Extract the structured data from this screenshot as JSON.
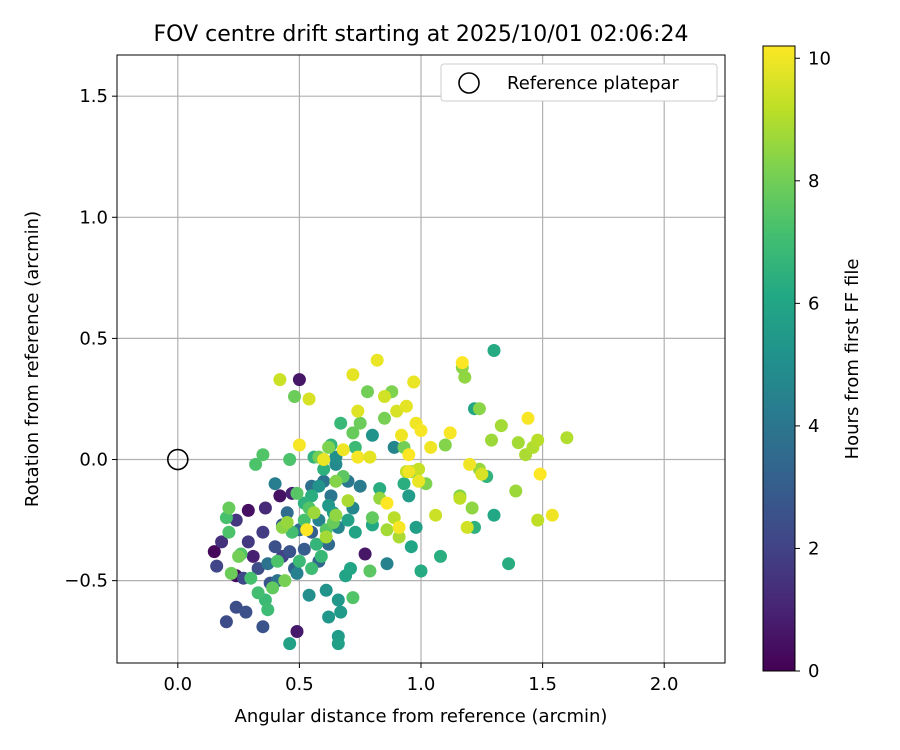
{
  "chart_data": {
    "type": "scatter",
    "title": "FOV centre drift starting at 2025/10/01 02:06:24",
    "xlabel": "Angular distance from reference (arcmin)",
    "ylabel": "Rotation from reference (arcmin)",
    "xlim": [
      -0.25,
      2.25
    ],
    "ylim": [
      -0.84,
      1.67
    ],
    "xticks": [
      0.0,
      0.5,
      1.0,
      1.5,
      2.0
    ],
    "xtick_labels": [
      "0.0",
      "0.5",
      "1.0",
      "1.5",
      "2.0"
    ],
    "yticks": [
      -0.5,
      0.0,
      0.5,
      1.0,
      1.5
    ],
    "ytick_labels": [
      "−0.5",
      "0.0",
      "0.5",
      "1.0",
      "1.5"
    ],
    "grid": true,
    "legend": {
      "location": "upper right",
      "label": "Reference platepar"
    },
    "reference_point": {
      "x": 0.0,
      "y": 0.0
    },
    "colorbar": {
      "label": "Hours from first FF file",
      "range": [
        0,
        10.2
      ],
      "ticks": [
        0,
        2,
        4,
        6,
        8,
        10
      ],
      "tick_labels": [
        "0",
        "2",
        "4",
        "6",
        "8",
        "10"
      ],
      "colormap": "viridis"
    },
    "points": [
      [
        0.15,
        -0.38,
        0.2
      ],
      [
        0.24,
        -0.48,
        0.3
      ],
      [
        0.29,
        -0.21,
        0.4
      ],
      [
        0.42,
        -0.15,
        0.5
      ],
      [
        0.5,
        0.33,
        0.6
      ],
      [
        0.49,
        -0.71,
        0.7
      ],
      [
        0.31,
        -0.4,
        0.9
      ],
      [
        0.77,
        -0.39,
        0.6
      ],
      [
        0.47,
        -0.14,
        1.0
      ],
      [
        0.36,
        -0.2,
        1.2
      ],
      [
        0.18,
        -0.34,
        1.4
      ],
      [
        0.24,
        -0.25,
        1.6
      ],
      [
        0.29,
        -0.34,
        1.7
      ],
      [
        0.35,
        -0.3,
        1.8
      ],
      [
        0.43,
        -0.4,
        2.0
      ],
      [
        0.16,
        -0.44,
        2.1
      ],
      [
        0.27,
        -0.49,
        2.2
      ],
      [
        0.33,
        -0.45,
        2.4
      ],
      [
        0.4,
        -0.36,
        2.5
      ],
      [
        0.46,
        -0.38,
        2.6
      ],
      [
        0.2,
        -0.67,
        2.3
      ],
      [
        0.24,
        -0.61,
        2.4
      ],
      [
        0.28,
        -0.63,
        2.5
      ],
      [
        0.35,
        -0.69,
        2.6
      ],
      [
        0.38,
        -0.51,
        2.7
      ],
      [
        0.43,
        -0.27,
        2.8
      ],
      [
        0.52,
        -0.37,
        3.0
      ],
      [
        0.55,
        -0.3,
        3.1
      ],
      [
        0.48,
        -0.45,
        3.2
      ],
      [
        0.58,
        -0.42,
        3.4
      ],
      [
        0.62,
        -0.35,
        3.5
      ],
      [
        0.45,
        -0.22,
        3.6
      ],
      [
        0.5,
        -0.29,
        3.7
      ],
      [
        0.41,
        -0.5,
        3.8
      ],
      [
        0.37,
        -0.43,
        3.9
      ],
      [
        0.55,
        -0.11,
        3.7
      ],
      [
        0.6,
        -0.09,
        3.9
      ],
      [
        0.63,
        -0.15,
        4.0
      ],
      [
        0.7,
        -0.09,
        4.1
      ],
      [
        0.75,
        -0.11,
        4.2
      ],
      [
        0.4,
        -0.1,
        4.3
      ],
      [
        0.49,
        -0.47,
        4.4
      ],
      [
        0.58,
        -0.25,
        4.5
      ],
      [
        0.66,
        -0.28,
        4.6
      ],
      [
        0.72,
        -0.2,
        4.7
      ],
      [
        0.86,
        -0.43,
        4.5
      ],
      [
        0.89,
        0.05,
        4.6
      ],
      [
        0.65,
        -0.02,
        4.8
      ],
      [
        0.65,
        0.01,
        5.0
      ],
      [
        0.8,
        0.1,
        5.2
      ],
      [
        0.54,
        -0.56,
        5.0
      ],
      [
        0.61,
        -0.54,
        5.2
      ],
      [
        0.62,
        -0.65,
        5.3
      ],
      [
        0.66,
        -0.58,
        5.4
      ],
      [
        0.67,
        -0.63,
        5.5
      ],
      [
        0.66,
        -0.73,
        5.6
      ],
      [
        0.66,
        -0.76,
        5.7
      ],
      [
        0.46,
        -0.76,
        5.8
      ],
      [
        0.69,
        -0.48,
        5.9
      ],
      [
        0.71,
        -0.45,
        6.0
      ],
      [
        0.58,
        -0.11,
        5.2
      ],
      [
        0.62,
        -0.19,
        5.4
      ],
      [
        0.64,
        -0.22,
        5.6
      ],
      [
        0.7,
        -0.25,
        5.8
      ],
      [
        0.73,
        -0.3,
        5.9
      ],
      [
        0.8,
        -0.27,
        6.1
      ],
      [
        0.83,
        -0.12,
        6.3
      ],
      [
        0.93,
        -0.1,
        6.4
      ],
      [
        0.95,
        -0.15,
        5.6
      ],
      [
        0.98,
        -0.28,
        5.7
      ],
      [
        0.96,
        -0.36,
        6.0
      ],
      [
        1.0,
        -0.46,
        6.2
      ],
      [
        1.08,
        -0.4,
        6.4
      ],
      [
        1.3,
        -0.23,
        6.1
      ],
      [
        1.36,
        -0.43,
        6.3
      ],
      [
        1.3,
        0.45,
        6.2
      ],
      [
        1.22,
        0.21,
        6.0
      ],
      [
        1.22,
        -0.28,
        6.5
      ],
      [
        1.27,
        -0.07,
        6.6
      ],
      [
        0.56,
        0.01,
        6.6
      ],
      [
        0.6,
        -0.04,
        6.5
      ],
      [
        0.63,
        0.06,
        6.7
      ],
      [
        0.67,
        0.15,
        6.8
      ],
      [
        0.73,
        0.05,
        6.9
      ],
      [
        0.55,
        -0.15,
        6.4
      ],
      [
        0.52,
        -0.18,
        6.5
      ],
      [
        0.57,
        -0.35,
        6.7
      ],
      [
        0.59,
        -0.4,
        6.8
      ],
      [
        0.5,
        -0.42,
        6.9
      ],
      [
        0.55,
        -0.45,
        7.0
      ],
      [
        0.36,
        -0.58,
        6.9
      ],
      [
        0.37,
        -0.62,
        7.0
      ],
      [
        0.3,
        -0.49,
        7.2
      ],
      [
        0.33,
        -0.55,
        7.1
      ],
      [
        0.41,
        -0.42,
        7.3
      ],
      [
        0.47,
        -0.3,
        7.1
      ],
      [
        0.52,
        -0.25,
        7.2
      ],
      [
        0.2,
        -0.24,
        7.2
      ],
      [
        0.21,
        -0.3,
        7.3
      ],
      [
        0.26,
        -0.39,
        7.4
      ],
      [
        0.32,
        -0.02,
        7.3
      ],
      [
        0.35,
        0.02,
        7.4
      ],
      [
        0.46,
        0.0,
        7.3
      ],
      [
        0.49,
        -0.14,
        7.5
      ],
      [
        0.54,
        -0.2,
        7.4
      ],
      [
        0.61,
        -0.29,
        7.5
      ],
      [
        0.72,
        -0.57,
        7.4
      ],
      [
        0.79,
        -0.46,
        7.6
      ],
      [
        0.8,
        -0.24,
        7.7
      ],
      [
        0.64,
        -0.26,
        7.8
      ],
      [
        0.68,
        -0.07,
        7.6
      ],
      [
        0.72,
        0.11,
        7.8
      ],
      [
        0.75,
        0.15,
        7.9
      ],
      [
        0.78,
        0.28,
        8.0
      ],
      [
        0.85,
        0.17,
        8.1
      ],
      [
        0.88,
        0.28,
        8.2
      ],
      [
        0.93,
        0.05,
        8.0
      ],
      [
        0.96,
        -0.05,
        8.1
      ],
      [
        1.02,
        -0.1,
        8.2
      ],
      [
        1.1,
        0.06,
        8.3
      ],
      [
        1.17,
        0.38,
        8.4
      ],
      [
        1.18,
        0.34,
        8.5
      ],
      [
        1.24,
        0.21,
        8.4
      ],
      [
        1.16,
        -0.15,
        8.3
      ],
      [
        1.21,
        -0.2,
        8.5
      ],
      [
        1.24,
        -0.04,
        8.6
      ],
      [
        1.29,
        0.08,
        8.7
      ],
      [
        1.33,
        0.14,
        8.8
      ],
      [
        1.39,
        -0.13,
        8.7
      ],
      [
        1.4,
        0.07,
        8.8
      ],
      [
        1.43,
        0.02,
        8.9
      ],
      [
        1.46,
        0.05,
        9.0
      ],
      [
        1.48,
        0.08,
        9.1
      ],
      [
        1.6,
        0.09,
        9.0
      ],
      [
        1.48,
        -0.25,
        9.2
      ],
      [
        0.48,
        0.26,
        7.9
      ],
      [
        0.58,
        0.01,
        8.0
      ],
      [
        0.62,
        0.05,
        8.2
      ],
      [
        0.65,
        -0.09,
        8.3
      ],
      [
        0.22,
        -0.47,
        7.9
      ],
      [
        0.21,
        -0.2,
        7.8
      ],
      [
        0.25,
        -0.4,
        8.0
      ],
      [
        0.39,
        -0.53,
        7.7
      ],
      [
        0.44,
        -0.5,
        8.1
      ],
      [
        0.43,
        -0.28,
        8.4
      ],
      [
        0.45,
        -0.26,
        8.6
      ],
      [
        0.56,
        -0.22,
        8.7
      ],
      [
        0.61,
        -0.32,
        8.8
      ],
      [
        0.65,
        -0.23,
        8.5
      ],
      [
        0.7,
        -0.17,
        8.9
      ],
      [
        0.83,
        -0.16,
        8.6
      ],
      [
        0.86,
        -0.29,
        8.8
      ],
      [
        0.91,
        -0.32,
        8.9
      ],
      [
        0.89,
        -0.24,
        9.1
      ],
      [
        0.94,
        -0.05,
        9.2
      ],
      [
        0.99,
        -0.04,
        9.3
      ],
      [
        1.06,
        -0.23,
        9.4
      ],
      [
        1.16,
        -0.16,
        9.2
      ],
      [
        1.19,
        -0.28,
        9.5
      ],
      [
        1.25,
        -0.06,
        9.6
      ],
      [
        0.42,
        0.33,
        9.4
      ],
      [
        0.54,
        0.25,
        9.6
      ],
      [
        0.72,
        0.35,
        9.8
      ],
      [
        0.74,
        0.2,
        9.7
      ],
      [
        0.82,
        0.41,
        9.9
      ],
      [
        0.85,
        0.26,
        9.5
      ],
      [
        0.9,
        0.2,
        9.6
      ],
      [
        0.94,
        0.22,
        9.8
      ],
      [
        0.97,
        0.32,
        9.9
      ],
      [
        0.98,
        0.15,
        10.0
      ],
      [
        1.0,
        0.12,
        10.1
      ],
      [
        1.04,
        0.05,
        10.0
      ],
      [
        1.12,
        0.11,
        10.1
      ],
      [
        1.17,
        0.4,
        10.2
      ],
      [
        1.2,
        -0.02,
        10.0
      ],
      [
        1.44,
        0.17,
        10.1
      ],
      [
        1.49,
        -0.06,
        10.2
      ],
      [
        1.54,
        -0.23,
        10.0
      ],
      [
        0.5,
        0.06,
        10.1
      ],
      [
        0.53,
        -0.29,
        10.2
      ],
      [
        0.6,
        0.0,
        9.9
      ],
      [
        0.68,
        0.04,
        10.0
      ],
      [
        0.74,
        0.01,
        10.1
      ],
      [
        0.79,
        0.01,
        9.8
      ],
      [
        0.92,
        0.1,
        10.0
      ],
      [
        0.86,
        -0.18,
        10.2
      ],
      [
        0.91,
        -0.28,
        10.1
      ],
      [
        0.99,
        -0.09,
        9.9
      ],
      [
        0.95,
        -0.05,
        10.0
      ],
      [
        0.95,
        0.02,
        10.2
      ]
    ]
  }
}
